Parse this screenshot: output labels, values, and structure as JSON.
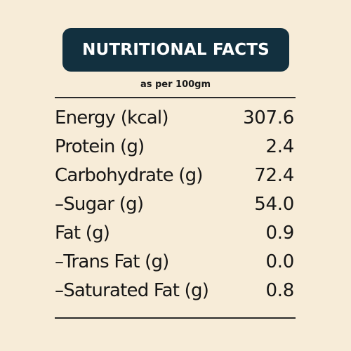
{
  "header": {
    "title": "NUTRITIONAL FACTS",
    "subtitle": "as per 100gm"
  },
  "nutrition": {
    "rows": [
      {
        "label": "Energy (kcal)",
        "value": "307.6"
      },
      {
        "label": "Protein (g)",
        "value": "2.4"
      },
      {
        "label": "Carbohydrate (g)",
        "value": "72.4"
      },
      {
        "label": "–Sugar (g)",
        "value": "54.0"
      },
      {
        "label": "Fat (g)",
        "value": "0.9"
      },
      {
        "label": "–Trans Fat (g)",
        "value": "0.0"
      },
      {
        "label": "–Saturated Fat (g)",
        "value": "0.8"
      }
    ]
  },
  "colors": {
    "background": "#f7ecd8",
    "title_box": "#12303f",
    "title_text": "#ffffff",
    "text": "#161616"
  }
}
